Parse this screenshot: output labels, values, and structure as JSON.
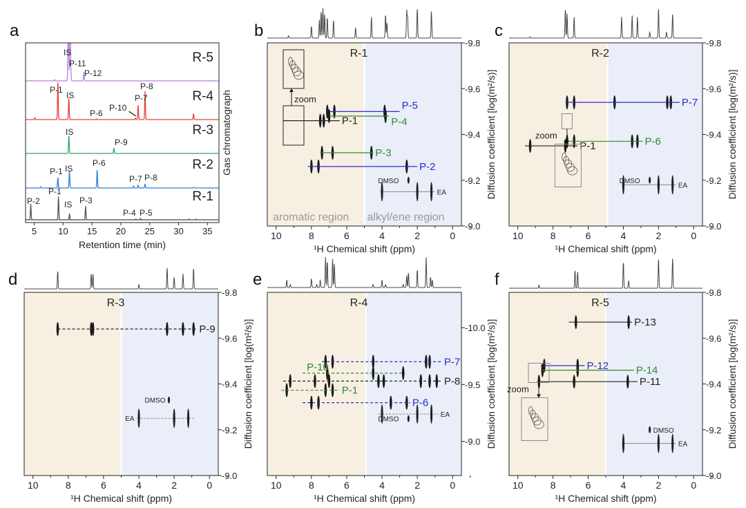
{
  "colors": {
    "blue": "#2b2bcc",
    "green": "#2e8b2e",
    "black": "#222222",
    "aromatic_bg": "#f7f0e2",
    "alkyl_bg": "#e9eef8",
    "gc_R5": "#b77fe0",
    "gc_R4": "#e8403a",
    "gc_R3": "#2ea868",
    "gc_R2": "#2f7fd8",
    "gc_R1": "#555555"
  },
  "chart_data": [
    {
      "panel": "a",
      "type": "line",
      "title": "",
      "xlabel": "Retention time (min)",
      "ylabel": "Gas chromatograph",
      "xlim": [
        3.5,
        37
      ],
      "xticks": [
        "5",
        "10",
        "15",
        "20",
        "25",
        "30",
        "35"
      ],
      "series": [
        {
          "name": "R-5",
          "color_key": "gc_R5",
          "peaks": [
            [
              4.6,
              1
            ],
            [
              8.5,
              2
            ],
            [
              10.9,
              160
            ],
            [
              11.2,
              160
            ],
            [
              11.35,
              10
            ],
            [
              13.6,
              13
            ],
            [
              36,
              1
            ]
          ],
          "labels": [
            {
              "text": "IS",
              "rt": 11.0,
              "h": 150
            },
            {
              "text": "P-11",
              "rt": 11.8,
              "h": 18
            },
            {
              "text": "P-12",
              "rt": 14.6,
              "h": 6
            }
          ]
        },
        {
          "name": "R-4",
          "color_key": "gc_R4",
          "peaks": [
            [
              5.1,
              3
            ],
            [
              9.1,
              58
            ],
            [
              11.0,
              33
            ],
            [
              15.8,
              1
            ],
            [
              22.5,
              2
            ],
            [
              23.0,
              21
            ],
            [
              24.2,
              41
            ],
            [
              32.6,
              9
            ]
          ],
          "labels": [
            {
              "text": "P-1",
              "rt": 9.0,
              "h": 38
            },
            {
              "text": "IS",
              "rt": 11.0,
              "h": 33
            },
            {
              "text": "P-6",
              "rt": 15.4,
              "h": 4
            },
            {
              "text": "P-10",
              "rt": 20.3,
              "h": 10
            },
            {
              "text": "P-7",
              "rt": 23.0,
              "h": 21
            },
            {
              "text": "P-8",
              "rt": 24.2,
              "h": 41
            }
          ]
        },
        {
          "name": "R-3",
          "color_key": "gc_R3",
          "peaks": [
            [
              11.0,
              27
            ],
            [
              18.8,
              8
            ]
          ],
          "labels": [
            {
              "text": "IS",
              "rt": 11.0,
              "h": 27
            },
            {
              "text": "P-9",
              "rt": 18.8,
              "h": 8
            }
          ]
        },
        {
          "name": "R-2",
          "color_key": "gc_R2",
          "peaks": [
            [
              6.1,
              2
            ],
            [
              9.1,
              16
            ],
            [
              11.1,
              25
            ],
            [
              15.9,
              27
            ],
            [
              22.2,
              3
            ],
            [
              23.0,
              4
            ],
            [
              24.2,
              6
            ],
            [
              32.6,
              1
            ]
          ],
          "labels": [
            {
              "text": "P-1",
              "rt": 8.9,
              "h": 16
            },
            {
              "text": "IS",
              "rt": 11.3,
              "h": 25
            },
            {
              "text": "P-6",
              "rt": 15.9,
              "h": 27
            },
            {
              "text": "P-7",
              "rt": 22.8,
              "h": 5
            },
            {
              "text": "P-8",
              "rt": 25.2,
              "h": 7
            }
          ]
        },
        {
          "name": "R-1",
          "color_key": "gc_R1",
          "peaks": [
            [
              4.4,
              23
            ],
            [
              9.2,
              35
            ],
            [
              11.1,
              9
            ],
            [
              13.9,
              20
            ],
            [
              22.6,
              1
            ],
            [
              23.4,
              2
            ],
            [
              31.8,
              1
            ],
            [
              33,
              1
            ]
          ],
          "labels": [
            {
              "text": "P-2",
              "rt": 4.4,
              "h": 23
            },
            {
              "text": "P-1",
              "rt": 9.1,
              "h": 35
            },
            {
              "text": "IS",
              "rt": 11.1,
              "h": 9
            },
            {
              "text": "P-3",
              "rt": 13.9,
              "h": 20
            },
            {
              "text": "P-4",
              "rt": 21.9,
              "h": 2
            },
            {
              "text": "P-5",
              "rt": 24.2,
              "h": 2
            }
          ]
        }
      ]
    },
    {
      "panel": "b",
      "type": "scatter",
      "title": "R-1",
      "xlabel": "¹H Chemical shift (ppm)",
      "ylabel": "Diffusion coefficient [log(m²/s)]",
      "xlim": [
        10.5,
        -0.5
      ],
      "ylim": [
        -9.8,
        -9.0
      ],
      "yticks": [
        -9.8,
        -9.6,
        -9.4,
        -9.2,
        -9.0
      ],
      "ytick_labels": [
        "-9.8",
        "-9.6",
        "-9.4",
        "-9.2",
        "-9.0"
      ],
      "xticks": [
        "10",
        "8",
        "6",
        "4",
        "2",
        "0"
      ],
      "region_split_ppm": 5.0,
      "region_labels": [
        "aromatic region",
        "alkyl/ene region"
      ],
      "zoom_label": "zoom",
      "spectrum": [
        [
          9.3,
          0.08
        ],
        [
          8.0,
          0.4
        ],
        [
          7.55,
          0.6
        ],
        [
          7.45,
          0.9
        ],
        [
          7.35,
          1
        ],
        [
          7.25,
          0.8
        ],
        [
          7.1,
          0.7
        ],
        [
          6.75,
          0.6
        ],
        [
          5.5,
          0.35
        ],
        [
          4.6,
          0.7
        ],
        [
          3.8,
          0.8
        ],
        [
          3.72,
          0.5
        ],
        [
          2.6,
          0.9
        ],
        [
          2.55,
          0.7
        ],
        [
          2.0,
          1
        ],
        [
          1.2,
          0.9
        ]
      ],
      "components": [
        {
          "label": "P-5",
          "color_key": "blue",
          "D": -9.5,
          "from": 7.1,
          "to": 3.0,
          "peaks": [
            7.1,
            6.7,
            3.85
          ],
          "dashed": false
        },
        {
          "label": "P-4",
          "color_key": "green",
          "D": -9.48,
          "from": 7.0,
          "to": 3.6,
          "peaks": [
            7.0,
            3.8
          ],
          "dashed": false
        },
        {
          "label": "P-1",
          "color_key": "black",
          "D": -9.46,
          "from": 9.6,
          "to": 6.4,
          "peaks": [
            7.5,
            7.3
          ],
          "dashed": false
        },
        {
          "label": "P-3",
          "color_key": "green",
          "D": -9.32,
          "from": 7.5,
          "to": 4.5,
          "peaks": [
            7.4,
            6.8,
            4.6
          ],
          "dashed": false
        },
        {
          "label": "P-2",
          "color_key": "blue",
          "D": -9.26,
          "from": 8.2,
          "to": 2.0,
          "peaks": [
            8.0,
            7.6,
            2.6
          ],
          "dashed": false
        }
      ],
      "solvents": [
        {
          "label": "EA",
          "D": -9.15,
          "peaks": [
            4.0,
            2.0,
            1.2
          ],
          "from": 4.1,
          "to": 1.0
        },
        {
          "label": "DMSO",
          "D": -9.2,
          "peaks": [
            2.5
          ]
        }
      ]
    },
    {
      "panel": "c",
      "type": "scatter",
      "title": "R-2",
      "xlabel": "¹H Chemical shift (ppm)",
      "ylabel": "Diffusion coefficient [log(m²/s)]",
      "xlim": [
        10.5,
        -0.5
      ],
      "ylim": [
        -9.8,
        -9.0
      ],
      "yticks": [
        -9.8,
        -9.6,
        -9.4,
        -9.2,
        -9.0
      ],
      "ytick_labels": [
        "-9.8",
        "-9.6",
        "-9.4",
        "-9.2",
        "-9.0"
      ],
      "xticks": [
        "10",
        "8",
        "6",
        "4",
        "2",
        "0"
      ],
      "region_split_ppm": 4.9,
      "zoom_label": "zoom",
      "spectrum": [
        [
          9.3,
          0.04
        ],
        [
          7.3,
          1
        ],
        [
          7.2,
          0.8
        ],
        [
          6.8,
          0.7
        ],
        [
          4.1,
          0.7
        ],
        [
          3.5,
          0.75
        ],
        [
          3.2,
          0.7
        ],
        [
          2.5,
          0.2
        ],
        [
          2.0,
          1
        ],
        [
          1.55,
          0.2
        ],
        [
          1.2,
          0.8
        ]
      ],
      "components": [
        {
          "label": "P-7",
          "color_key": "blue",
          "D": -9.54,
          "from": 7.3,
          "to": 0.8,
          "peaks": [
            7.2,
            6.8,
            4.5,
            1.5,
            1.3
          ],
          "dashed": false
        },
        {
          "label": "P-6",
          "color_key": "green",
          "D": -9.37,
          "from": 7.4,
          "to": 2.9,
          "peaks": [
            7.2,
            6.8,
            3.5,
            3.2
          ],
          "dashed": false
        },
        {
          "label": "P-1",
          "color_key": "black",
          "D": -9.35,
          "from": 9.6,
          "to": 6.6,
          "peaks": [
            9.3,
            7.3
          ],
          "dashed": false
        }
      ],
      "solvents": [
        {
          "label": "EA",
          "D": -9.18,
          "peaks": [
            4.0,
            2.0,
            1.2
          ],
          "from": 4.1,
          "to": 1.0
        },
        {
          "label": "DMSO",
          "D": -9.2,
          "peaks": [
            2.5
          ]
        }
      ]
    },
    {
      "panel": "d",
      "type": "scatter",
      "title": "R-3",
      "xlabel": "¹H Chemical shift (ppm)",
      "ylabel": "Diffusion coefficient [log(m²/s)]",
      "xlim": [
        10.5,
        -0.5
      ],
      "ylim": [
        -9.8,
        -9.0
      ],
      "yticks": [
        -9.8,
        -9.6,
        -9.4,
        -9.2,
        -9.0
      ],
      "ytick_labels": [
        "-9.8",
        "-9.6",
        "-9.4",
        "-9.2",
        "-9.0"
      ],
      "xticks": [
        "10",
        "8",
        "6",
        "4",
        "2",
        "0"
      ],
      "region_split_ppm": 5.0,
      "spectrum": [
        [
          8.6,
          0.6
        ],
        [
          6.7,
          0.5
        ],
        [
          6.6,
          0.5
        ],
        [
          4.0,
          0.15
        ],
        [
          2.4,
          0.7
        ],
        [
          2.0,
          0.4
        ],
        [
          1.5,
          0.5
        ],
        [
          0.9,
          0.7
        ]
      ],
      "components": [
        {
          "label": "P-9",
          "color_key": "black",
          "D": -9.64,
          "from": 8.6,
          "to": 0.7,
          "peaks": [
            8.6,
            6.7,
            6.6,
            2.4,
            1.5,
            0.9
          ],
          "dashed": true
        }
      ],
      "solvents": [
        {
          "label": "EA",
          "D": -9.25,
          "peaks": [
            4.0,
            2.0,
            1.2
          ],
          "from": 4.1,
          "to": 0.8,
          "label_left": true
        },
        {
          "label": "DMSO",
          "D": -9.33,
          "peaks": [
            2.3
          ]
        }
      ]
    },
    {
      "panel": "e",
      "type": "scatter",
      "title": "R-4",
      "xlabel": "¹H Chemical shift (ppm)",
      "ylabel": "Diffusion coefficient [log(m²/s)]",
      "xlim": [
        10.5,
        -0.5
      ],
      "ylim": [
        -10.31,
        -8.7
      ],
      "yticks": [
        -10.0,
        -9.5,
        -9.0
      ],
      "ytick_labels": [
        "-10.0",
        "-9.5",
        "-9.0"
      ],
      "xticks": [
        "10",
        "8",
        "6",
        "4",
        "2",
        "0"
      ],
      "region_split_ppm": 4.9,
      "spectrum": [
        [
          9.4,
          0.25
        ],
        [
          9.2,
          0.1
        ],
        [
          8.0,
          0.3
        ],
        [
          7.7,
          0.1
        ],
        [
          7.5,
          0.25
        ],
        [
          7.2,
          1
        ],
        [
          7.1,
          0.9
        ],
        [
          6.8,
          0.95
        ],
        [
          6.7,
          0.8
        ],
        [
          4.5,
          0.1
        ],
        [
          4.0,
          0.25
        ],
        [
          3.8,
          0.1
        ],
        [
          2.8,
          0.1
        ],
        [
          2.6,
          0.4
        ],
        [
          2.5,
          0.5
        ],
        [
          2.0,
          0.6
        ],
        [
          1.5,
          1
        ],
        [
          1.25,
          0.35
        ],
        [
          1.15,
          0.25
        ]
      ],
      "components": [
        {
          "label": "P-7",
          "color_key": "blue",
          "D": -9.7,
          "from": 7.4,
          "to": 0.6,
          "peaks": [
            7.2,
            6.8,
            4.5,
            1.5,
            1.3
          ],
          "dashed": true
        },
        {
          "label": "P-10",
          "color_key": "green",
          "D": -9.6,
          "from": 8.5,
          "to": 2.7,
          "peaks": [
            7.1,
            4.5,
            2.8
          ],
          "dashed": true,
          "label_left": true
        },
        {
          "label": "P-8",
          "color_key": "black",
          "D": -9.53,
          "from": 9.6,
          "to": 0.6,
          "peaks": [
            9.2,
            7.8,
            7.0,
            4.2,
            3.9,
            1.8,
            1.3,
            0.9
          ],
          "dashed": true
        },
        {
          "label": "P-1",
          "color_key": "green",
          "D": -9.45,
          "from": 9.7,
          "to": 6.4,
          "peaks": [
            9.4,
            7.2,
            6.8
          ],
          "dashed": true
        },
        {
          "label": "P-6",
          "color_key": "blue",
          "D": -9.34,
          "from": 8.5,
          "to": 2.4,
          "peaks": [
            8.0,
            7.6,
            3.5,
            2.6
          ],
          "dashed": true
        }
      ],
      "solvents": [
        {
          "label": "EA",
          "D": -9.24,
          "peaks": [
            4.0,
            2.0,
            1.2
          ],
          "from": 4.2,
          "to": 0.8
        },
        {
          "label": "DMSO",
          "D": -9.2,
          "peaks": [
            2.5
          ]
        }
      ]
    },
    {
      "panel": "f",
      "type": "scatter",
      "title": "R-5",
      "xlabel": "¹H Chemical shift (ppm)",
      "ylabel": "Diffusion coefficient [log(m²/s)]",
      "xlim": [
        10.5,
        -0.5
      ],
      "ylim": [
        -9.8,
        -9.0
      ],
      "yticks": [
        -9.8,
        -9.6,
        -9.4,
        -9.2,
        -9.0
      ],
      "ytick_labels": [
        "-9.8",
        "-9.6",
        "-9.4",
        "-9.2",
        "-9.0"
      ],
      "xticks": [
        "10",
        "8",
        "6",
        "4",
        "2",
        "0"
      ],
      "region_split_ppm": 5.0,
      "zoom_label": "zoom",
      "spectrum": [
        [
          8.8,
          0.1
        ],
        [
          6.75,
          0.6
        ],
        [
          6.6,
          0.55
        ],
        [
          4.0,
          0.9
        ],
        [
          3.7,
          0.25
        ],
        [
          2.0,
          1
        ],
        [
          1.2,
          1
        ]
      ],
      "components": [
        {
          "label": "P-13",
          "color_key": "black",
          "D": -9.67,
          "from": 7.1,
          "to": 3.5,
          "peaks": [
            6.7,
            3.7
          ],
          "dashed": false
        },
        {
          "label": "P-12",
          "color_key": "blue",
          "D": -9.48,
          "from": 8.7,
          "to": 6.2,
          "peaks": [
            8.5,
            6.6
          ],
          "dashed": false
        },
        {
          "label": "P-14",
          "color_key": "green",
          "D": -9.46,
          "from": 8.6,
          "to": 3.4,
          "peaks": [
            8.6,
            6.6
          ],
          "dashed": false
        },
        {
          "label": "P-11",
          "color_key": "black",
          "D": -9.41,
          "from": 8.9,
          "to": 3.2,
          "peaks": [
            8.8,
            6.8,
            3.75
          ],
          "dashed": false
        }
      ],
      "solvents": [
        {
          "label": "EA",
          "D": -9.14,
          "peaks": [
            4.0,
            2.0,
            1.2
          ],
          "from": 4.1,
          "to": 1.0
        },
        {
          "label": "DMSO",
          "D": -9.2,
          "peaks": [
            2.5
          ]
        }
      ]
    }
  ]
}
